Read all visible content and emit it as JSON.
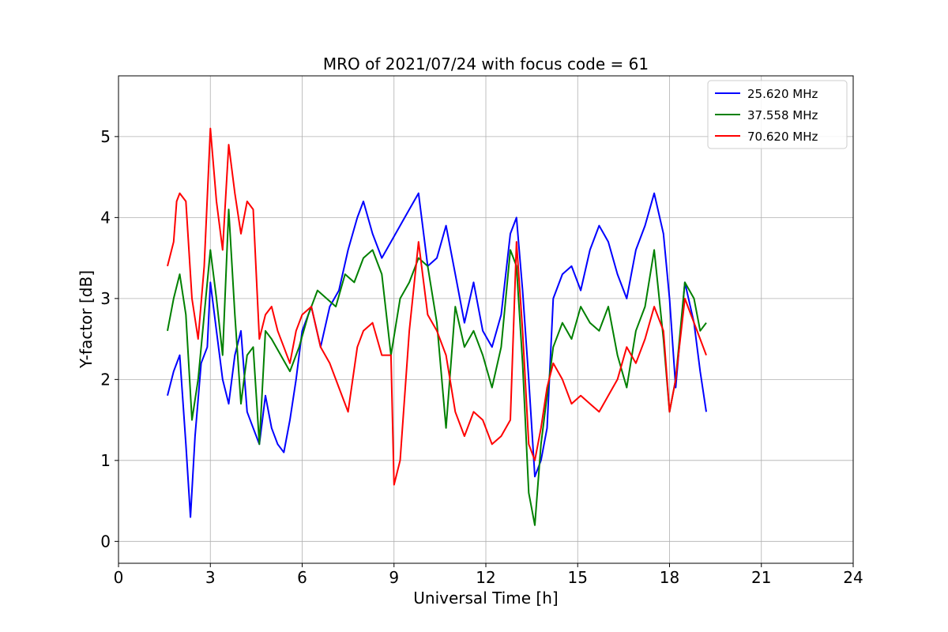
{
  "chart_data": {
    "type": "line",
    "title": "MRO of 2021/07/24 with focus code = 61",
    "xlabel": "Universal Time [h]",
    "ylabel": "Y-factor [dB]",
    "xlim": [
      0,
      24
    ],
    "ylim": [
      -0.27,
      5.75
    ],
    "xticks": [
      0,
      3,
      6,
      9,
      12,
      15,
      18,
      21,
      24
    ],
    "yticks": [
      0,
      1,
      2,
      3,
      4,
      5
    ],
    "grid": true,
    "legend": "top-right",
    "series": [
      {
        "name": "25.620 MHz",
        "color": "#0000ff",
        "x": [
          1.6,
          1.8,
          2.0,
          2.2,
          2.35,
          2.5,
          2.7,
          2.9,
          3.0,
          3.2,
          3.4,
          3.6,
          3.8,
          4.0,
          4.2,
          4.4,
          4.6,
          4.8,
          5.0,
          5.2,
          5.4,
          5.6,
          5.8,
          6.0,
          6.3,
          6.6,
          6.9,
          7.2,
          7.5,
          7.8,
          8.0,
          8.3,
          8.6,
          8.9,
          9.2,
          9.5,
          9.8,
          10.1,
          10.4,
          10.7,
          11.0,
          11.3,
          11.6,
          11.9,
          12.2,
          12.5,
          12.8,
          13.0,
          13.2,
          13.4,
          13.6,
          13.8,
          14.0,
          14.2,
          14.5,
          14.8,
          15.1,
          15.4,
          15.7,
          16.0,
          16.3,
          16.6,
          16.9,
          17.2,
          17.5,
          17.8,
          18.0,
          18.2,
          18.5,
          18.8,
          19.0,
          19.2
        ],
        "y": [
          1.8,
          2.1,
          2.3,
          1.2,
          0.3,
          1.3,
          2.2,
          2.4,
          3.2,
          2.6,
          2.0,
          1.7,
          2.3,
          2.6,
          1.6,
          1.4,
          1.2,
          1.8,
          1.4,
          1.2,
          1.1,
          1.5,
          2.0,
          2.6,
          2.9,
          2.4,
          2.9,
          3.1,
          3.6,
          4.0,
          4.2,
          3.8,
          3.5,
          3.7,
          3.9,
          4.1,
          4.3,
          3.4,
          3.5,
          3.9,
          3.3,
          2.7,
          3.2,
          2.6,
          2.4,
          2.8,
          3.8,
          4.0,
          3.1,
          2.0,
          0.8,
          1.0,
          1.4,
          3.0,
          3.3,
          3.4,
          3.1,
          3.6,
          3.9,
          3.7,
          3.3,
          3.0,
          3.6,
          3.9,
          4.3,
          3.8,
          3.0,
          1.9,
          3.2,
          2.7,
          2.1,
          1.6
        ]
      },
      {
        "name": "37.558 MHz",
        "color": "#008000",
        "x": [
          1.6,
          1.8,
          2.0,
          2.2,
          2.4,
          2.6,
          2.8,
          3.0,
          3.2,
          3.4,
          3.6,
          3.8,
          4.0,
          4.2,
          4.4,
          4.6,
          4.8,
          5.0,
          5.3,
          5.6,
          5.9,
          6.2,
          6.5,
          6.8,
          7.1,
          7.4,
          7.7,
          8.0,
          8.3,
          8.6,
          8.9,
          9.2,
          9.5,
          9.8,
          10.1,
          10.4,
          10.7,
          11.0,
          11.3,
          11.6,
          11.9,
          12.2,
          12.5,
          12.8,
          13.0,
          13.2,
          13.4,
          13.6,
          13.8,
          14.0,
          14.2,
          14.5,
          14.8,
          15.1,
          15.4,
          15.7,
          16.0,
          16.3,
          16.6,
          16.9,
          17.2,
          17.5,
          17.8,
          18.0,
          18.2,
          18.5,
          18.8,
          19.0,
          19.2
        ],
        "y": [
          2.6,
          3.0,
          3.3,
          2.8,
          1.5,
          2.0,
          2.8,
          3.6,
          3.0,
          2.3,
          4.1,
          2.8,
          1.7,
          2.3,
          2.4,
          1.2,
          2.6,
          2.5,
          2.3,
          2.1,
          2.4,
          2.8,
          3.1,
          3.0,
          2.9,
          3.3,
          3.2,
          3.5,
          3.6,
          3.3,
          2.3,
          3.0,
          3.2,
          3.5,
          3.4,
          2.7,
          1.4,
          2.9,
          2.4,
          2.6,
          2.3,
          1.9,
          2.4,
          3.6,
          3.4,
          2.2,
          0.6,
          0.2,
          1.2,
          1.8,
          2.4,
          2.7,
          2.5,
          2.9,
          2.7,
          2.6,
          2.9,
          2.3,
          1.9,
          2.6,
          2.9,
          3.6,
          2.5,
          1.6,
          2.0,
          3.2,
          3.0,
          2.6,
          2.7
        ]
      },
      {
        "name": "70.620 MHz",
        "color": "#ff0000",
        "x": [
          1.6,
          1.8,
          1.9,
          2.0,
          2.2,
          2.4,
          2.6,
          2.8,
          3.0,
          3.2,
          3.4,
          3.6,
          3.8,
          4.0,
          4.2,
          4.4,
          4.6,
          4.8,
          5.0,
          5.2,
          5.4,
          5.6,
          5.8,
          6.0,
          6.3,
          6.6,
          6.9,
          7.2,
          7.5,
          7.8,
          8.0,
          8.3,
          8.6,
          8.9,
          9.0,
          9.2,
          9.5,
          9.8,
          10.1,
          10.4,
          10.7,
          11.0,
          11.3,
          11.6,
          11.9,
          12.2,
          12.5,
          12.8,
          13.0,
          13.2,
          13.4,
          13.6,
          13.8,
          14.0,
          14.2,
          14.5,
          14.8,
          15.1,
          15.4,
          15.7,
          16.0,
          16.3,
          16.6,
          16.9,
          17.2,
          17.5,
          17.8,
          18.0,
          18.2,
          18.5,
          18.8,
          19.0,
          19.2
        ],
        "y": [
          3.4,
          3.7,
          4.2,
          4.3,
          4.2,
          3.0,
          2.5,
          3.4,
          5.1,
          4.2,
          3.6,
          4.9,
          4.3,
          3.8,
          4.2,
          4.1,
          2.5,
          2.8,
          2.9,
          2.6,
          2.4,
          2.2,
          2.6,
          2.8,
          2.9,
          2.4,
          2.2,
          1.9,
          1.6,
          2.4,
          2.6,
          2.7,
          2.3,
          2.3,
          0.7,
          1.0,
          2.6,
          3.7,
          2.8,
          2.6,
          2.3,
          1.6,
          1.3,
          1.6,
          1.5,
          1.2,
          1.3,
          1.5,
          3.7,
          2.6,
          1.2,
          1.0,
          1.4,
          1.9,
          2.2,
          2.0,
          1.7,
          1.8,
          1.7,
          1.6,
          1.8,
          2.0,
          2.4,
          2.2,
          2.5,
          2.9,
          2.6,
          1.6,
          2.0,
          3.0,
          2.7,
          2.5,
          2.3
        ]
      }
    ]
  }
}
